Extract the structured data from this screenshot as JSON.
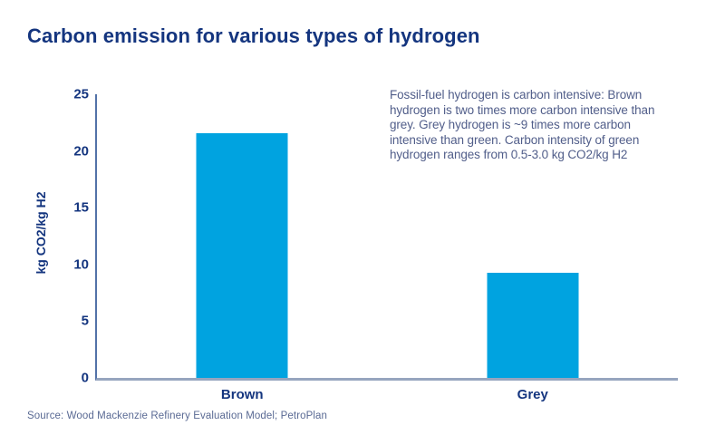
{
  "header": {
    "title": "Carbon emission for various types of hydrogen"
  },
  "chart_data": {
    "type": "bar",
    "title": "Carbon emission for various types of hydrogen",
    "categories": [
      "Brown",
      "Grey"
    ],
    "values": [
      21.6,
      9.3
    ],
    "xlabel": "",
    "ylabel": "kg CO2/kg H2",
    "ylim": [
      0,
      25
    ],
    "yticks": [
      0,
      5,
      10,
      15,
      20,
      25
    ],
    "grid": false,
    "legend": false,
    "bar_color": "#00A3E0"
  },
  "annotation": {
    "lines": [
      "Fossil-fuel hydrogen is carbon intensive: Brown",
      "hydrogen is two times more carbon intensive than",
      "grey. Grey hydrogen is ~9 times more carbon",
      "intensive than green. Carbon intensity of green",
      "hydrogen ranges from 0.5-3.0 kg CO2/kg H2"
    ]
  },
  "footer": {
    "source": "Source: Wood Mackenzie Refinery Evaluation Model; PetroPlan"
  },
  "colors": {
    "title_text": "#14357F",
    "bar": "#00A3E0",
    "annotation_text": "#515E8A",
    "y_axis_line": "#5272A8",
    "x_axis_line": "#97A5BF",
    "source_text": "#5A6A94"
  }
}
